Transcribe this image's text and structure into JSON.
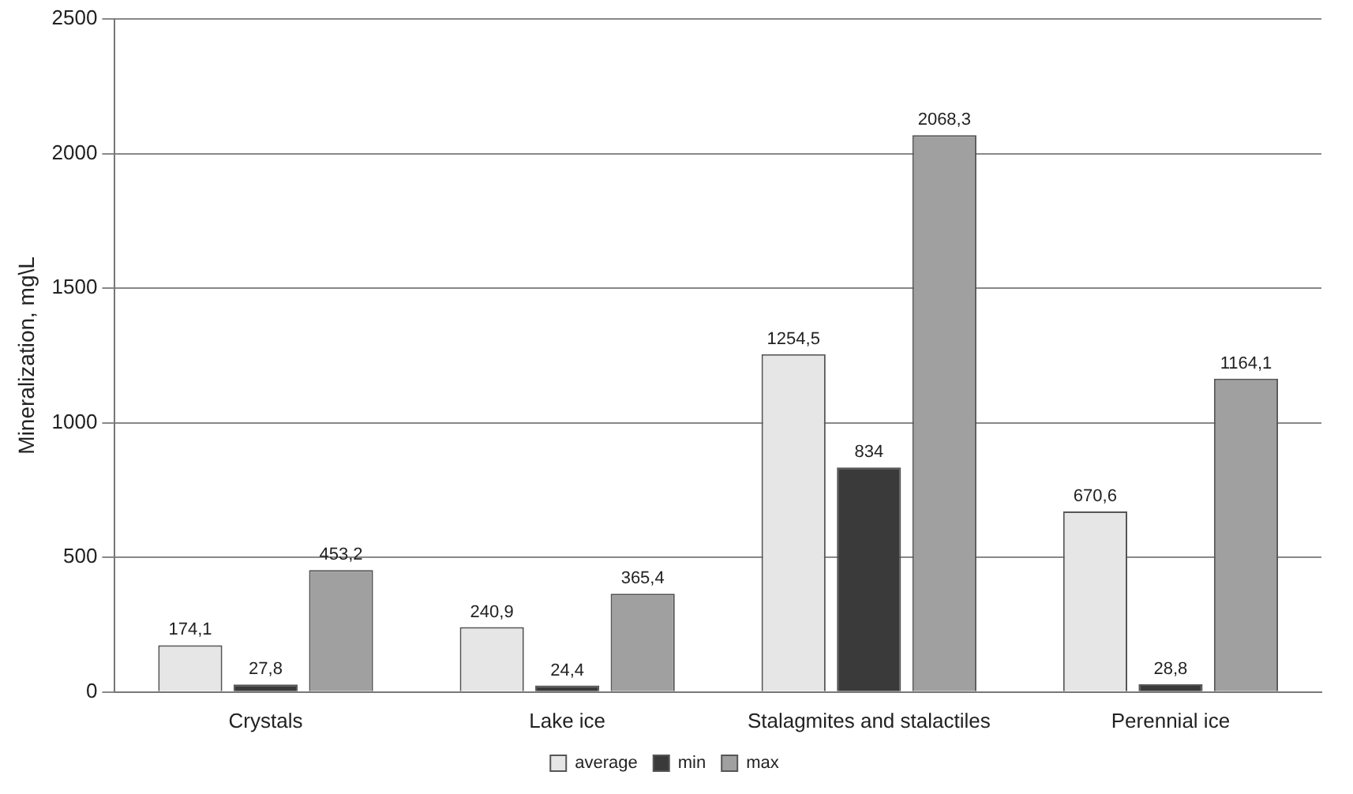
{
  "chart_data": {
    "type": "bar",
    "ylabel": "Mineralization, mg\\L",
    "categories": [
      "Crystals",
      "Lake ice",
      "Stalagmites and stalactiles",
      "Perennial ice"
    ],
    "series": [
      {
        "name": "average",
        "color": "#e6e6e6",
        "values": [
          174.1,
          240.9,
          1254.5,
          670.6
        ],
        "value_labels": [
          "174,1",
          "240,9",
          "1254,5",
          "670,6"
        ]
      },
      {
        "name": "min",
        "color": "#3a3a3a",
        "values": [
          27.8,
          24.4,
          834,
          28.8
        ],
        "value_labels": [
          "27,8",
          "24,4",
          "834",
          "28,8"
        ]
      },
      {
        "name": "max",
        "color": "#a0a0a0",
        "values": [
          453.2,
          365.4,
          2068.3,
          1164.1
        ],
        "value_labels": [
          "453,2",
          "365,4",
          "2068,3",
          "1164,1"
        ]
      }
    ],
    "ylim": [
      0,
      2500
    ],
    "yticks": [
      0,
      500,
      1000,
      1500,
      2000,
      2500
    ],
    "grid": "y",
    "legend": "bottom"
  }
}
